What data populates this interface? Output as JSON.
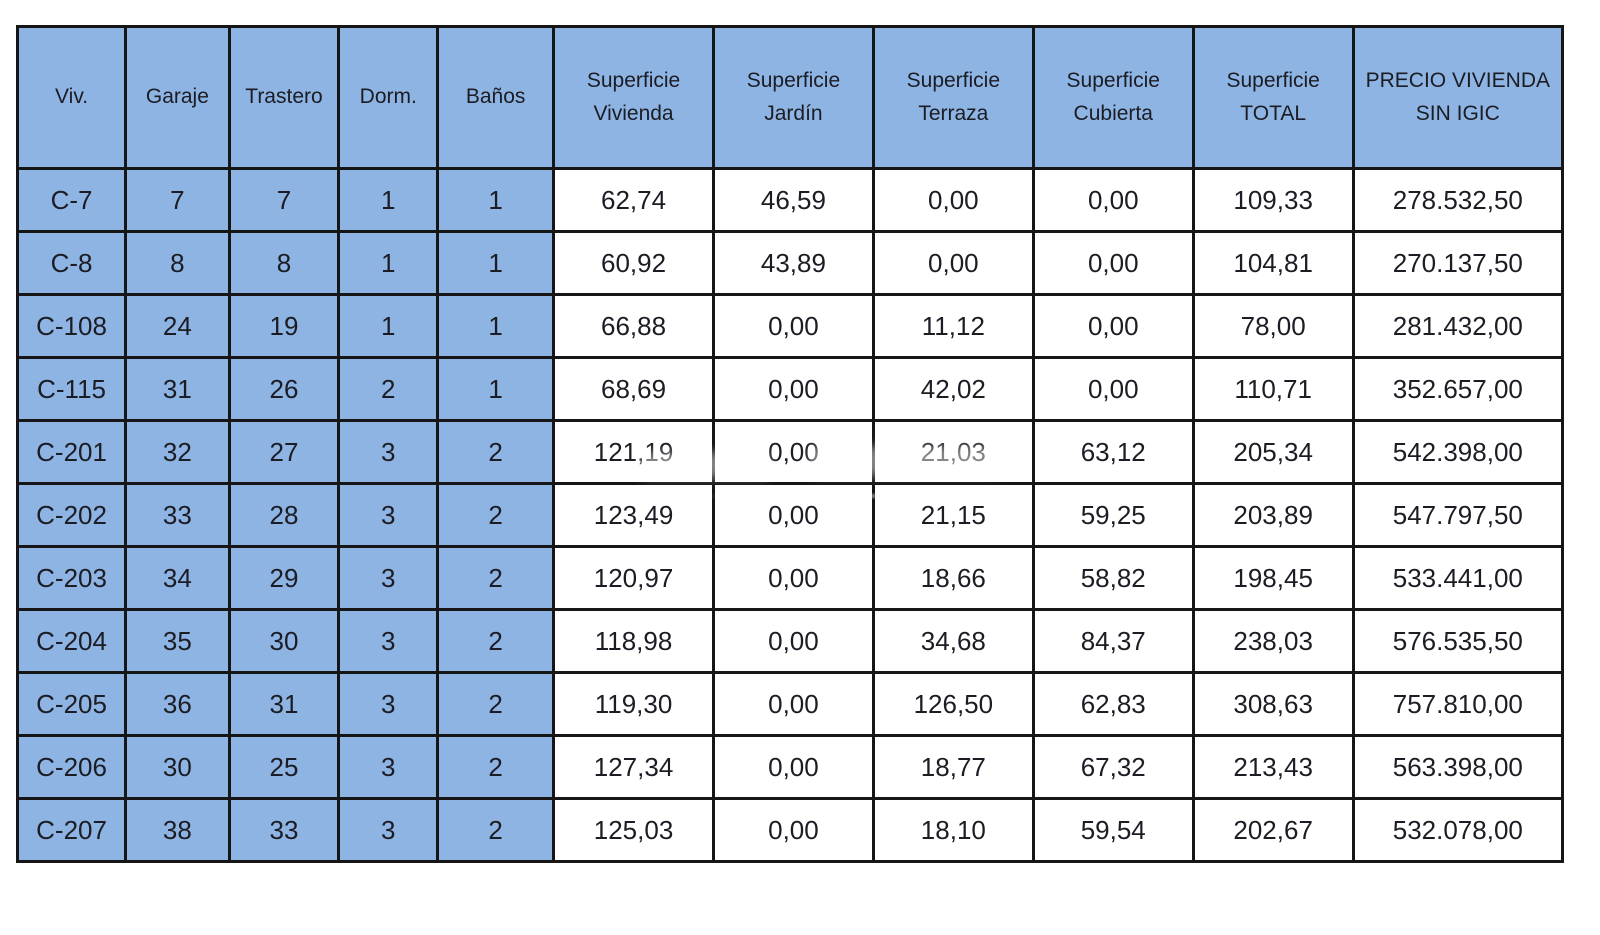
{
  "colors": {
    "header_bg": "#8db4e2",
    "cell_bg": "#ffffff",
    "border": "#161616",
    "text": "#1c1c24"
  },
  "table": {
    "columns": [
      "Viv.",
      "Garaje",
      "Trastero",
      "Dorm.",
      "Baños",
      "Superficie Vivienda",
      "Superficie Jardín",
      "Superficie Terraza",
      "Superficie Cubierta",
      "Superficie TOTAL",
      "PRECIO VIVIENDA SIN IGIC"
    ],
    "rows": [
      [
        "C-7",
        "7",
        "7",
        "1",
        "1",
        "62,74",
        "46,59",
        "0,00",
        "0,00",
        "109,33",
        "278.532,50"
      ],
      [
        "C-8",
        "8",
        "8",
        "1",
        "1",
        "60,92",
        "43,89",
        "0,00",
        "0,00",
        "104,81",
        "270.137,50"
      ],
      [
        "C-108",
        "24",
        "19",
        "1",
        "1",
        "66,88",
        "0,00",
        "11,12",
        "0,00",
        "78,00",
        "281.432,00"
      ],
      [
        "C-115",
        "31",
        "26",
        "2",
        "1",
        "68,69",
        "0,00",
        "42,02",
        "0,00",
        "110,71",
        "352.657,00"
      ],
      [
        "C-201",
        "32",
        "27",
        "3",
        "2",
        "121,19",
        "0,00",
        "21,03",
        "63,12",
        "205,34",
        "542.398,00"
      ],
      [
        "C-202",
        "33",
        "28",
        "3",
        "2",
        "123,49",
        "0,00",
        "21,15",
        "59,25",
        "203,89",
        "547.797,50"
      ],
      [
        "C-203",
        "34",
        "29",
        "3",
        "2",
        "120,97",
        "0,00",
        "18,66",
        "58,82",
        "198,45",
        "533.441,00"
      ],
      [
        "C-204",
        "35",
        "30",
        "3",
        "2",
        "118,98",
        "0,00",
        "34,68",
        "84,37",
        "238,03",
        "576.535,50"
      ],
      [
        "C-205",
        "36",
        "31",
        "3",
        "2",
        "119,30",
        "0,00",
        "126,50",
        "62,83",
        "308,63",
        "757.810,00"
      ],
      [
        "C-206",
        "30",
        "25",
        "3",
        "2",
        "127,34",
        "0,00",
        "18,77",
        "67,32",
        "213,43",
        "563.398,00"
      ],
      [
        "C-207",
        "38",
        "33",
        "3",
        "2",
        "125,03",
        "0,00",
        "18,10",
        "59,54",
        "202,67",
        "532.078,00"
      ]
    ]
  }
}
